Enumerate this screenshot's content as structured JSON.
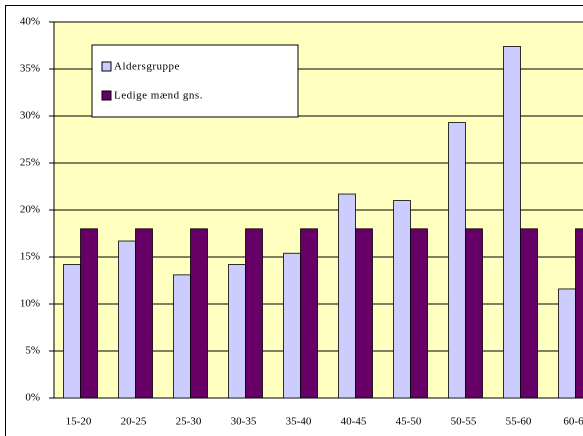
{
  "chart_data": {
    "type": "bar",
    "categories": [
      "15-20",
      "20-25",
      "25-30",
      "30-35",
      "35-40",
      "40-45",
      "45-50",
      "50-55",
      "55-60",
      "60-6"
    ],
    "series": [
      {
        "name": "Aldersgruppe",
        "color": "#ccccff",
        "values": [
          14.2,
          16.7,
          13.1,
          14.2,
          15.4,
          21.7,
          21.0,
          29.3,
          37.4,
          11.6
        ]
      },
      {
        "name": "Ledige mænd gns.",
        "color": "#660066",
        "values": [
          18,
          18,
          18,
          18,
          18,
          18,
          18,
          18,
          18,
          18
        ]
      }
    ],
    "ylim": [
      0,
      40
    ],
    "yticks": [
      {
        "value": 0,
        "label": "0%"
      },
      {
        "value": 5,
        "label": "5%"
      },
      {
        "value": 10,
        "label": "10%"
      },
      {
        "value": 15,
        "label": "15%"
      },
      {
        "value": 20,
        "label": "20%"
      },
      {
        "value": 25,
        "label": "25%"
      },
      {
        "value": 30,
        "label": "30%"
      },
      {
        "value": 35,
        "label": "35%"
      },
      {
        "value": 40,
        "label": "40%"
      }
    ],
    "grid": true,
    "legend": "upper left",
    "background": "#ffffc0"
  }
}
